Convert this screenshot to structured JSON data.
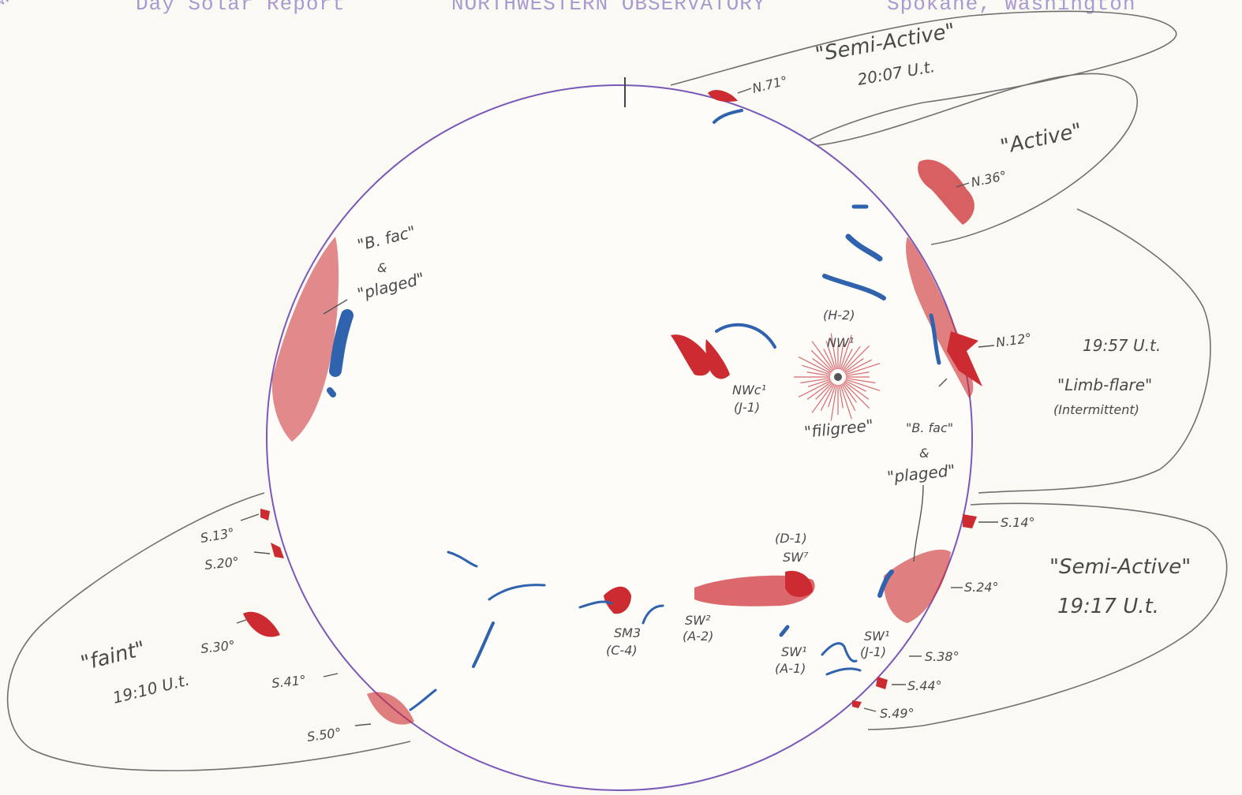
{
  "header": {
    "corner": "NW",
    "title": "Day Solar Report",
    "observatory": "NORTHWESTERN OBSERVATORY",
    "location": "Spokane, Washington"
  },
  "colors": {
    "limb": "#7a58b8",
    "plage": "#cc2b31",
    "filament": "#2f63ad",
    "pencil": "#6f6f6f"
  },
  "prominence_regions": [
    {
      "id": "north-polar",
      "status": "\"Semi-Active\"",
      "time": "20:07 U.t."
    },
    {
      "id": "north-east",
      "status": "\"Active\""
    },
    {
      "id": "east-limb",
      "time": "19:57 U.t.",
      "status": "\"Limb-flare\"",
      "note": "(Intermittent)"
    },
    {
      "id": "south-east",
      "status": "\"Semi-Active\"",
      "time": "19:17 U.t."
    },
    {
      "id": "south-west",
      "status": "\"faint\"",
      "time": "19:10 U.t."
    }
  ],
  "latitudes": {
    "east": [
      "N.71°",
      "N.36°",
      "N.12°",
      "S.14°",
      "S.24°",
      "S.38°",
      "S.44°",
      "S.49°"
    ],
    "west": [
      "S.13°",
      "S.20°",
      "S.30°",
      "S.41°",
      "S.50°"
    ]
  },
  "features": {
    "west_fac": [
      "\"B. fac\"",
      "&",
      "\"plaged\""
    ],
    "east_fac": [
      "\"B. fac\"",
      "&",
      "\"plaged\""
    ],
    "filigree": "\"filigree\"",
    "h2": "(H-2)",
    "nw1": "NW¹",
    "nwc1": "NWc¹",
    "j1": "(J-1)",
    "d1": "(D-1)",
    "sw7": "SW⁷",
    "sm3": "SM3",
    "c4": "(C-4)",
    "sw2": "SW²",
    "a2": "(A-2)",
    "sw1a": "SW¹",
    "a1": "(A-1)",
    "sw1j": "SW¹",
    "j1b": "(J-1)"
  }
}
